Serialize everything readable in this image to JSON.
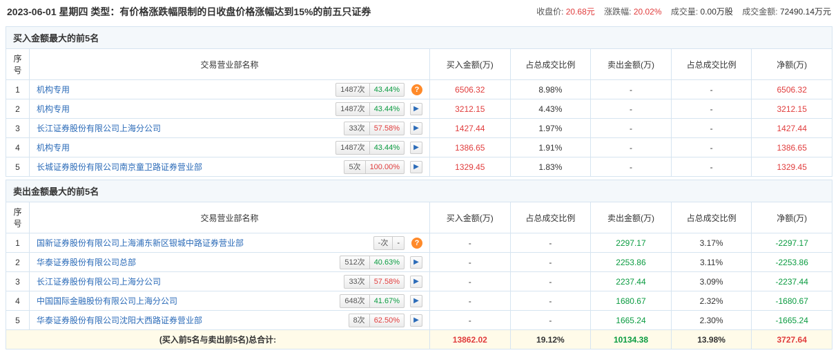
{
  "header": {
    "date": "2023-06-01",
    "weekday": "星期四",
    "type_label": "类型：",
    "type_value": "有价格涨跌幅限制的日收盘价格涨幅达到15%的前五只证券",
    "close_label": "收盘价:",
    "close_value": "20.68元",
    "change_label": "涨跌幅:",
    "change_value": "20.02%",
    "volume_label": "成交量:",
    "volume_value": "0.00万股",
    "amount_label": "成交金额:",
    "amount_value": "72490.14万元"
  },
  "columns": {
    "rank": "序号",
    "name": "交易营业部名称",
    "buy_amount": "买入金额(万)",
    "buy_pct": "占总成交比例",
    "sell_amount": "卖出金额(万)",
    "sell_pct": "占总成交比例",
    "net": "净额(万)"
  },
  "buy": {
    "title": "买入金额最大的前5名",
    "rows": [
      {
        "rank": "1",
        "name": "机构专用",
        "badge_times": "1487次",
        "badge_pct": "43.44%",
        "pct_color": "green",
        "icon": "q",
        "buy": "6506.32",
        "buy_pct": "8.98%",
        "sell": "-",
        "sell_pct": "-",
        "net": "6506.32",
        "net_color": "red"
      },
      {
        "rank": "2",
        "name": "机构专用",
        "badge_times": "1487次",
        "badge_pct": "43.44%",
        "pct_color": "green",
        "icon": "arrow",
        "buy": "3212.15",
        "buy_pct": "4.43%",
        "sell": "-",
        "sell_pct": "-",
        "net": "3212.15",
        "net_color": "red"
      },
      {
        "rank": "3",
        "name": "长江证券股份有限公司上海分公司",
        "badge_times": "33次",
        "badge_pct": "57.58%",
        "pct_color": "red",
        "icon": "arrow",
        "buy": "1427.44",
        "buy_pct": "1.97%",
        "sell": "-",
        "sell_pct": "-",
        "net": "1427.44",
        "net_color": "red"
      },
      {
        "rank": "4",
        "name": "机构专用",
        "badge_times": "1487次",
        "badge_pct": "43.44%",
        "pct_color": "green",
        "icon": "arrow",
        "buy": "1386.65",
        "buy_pct": "1.91%",
        "sell": "-",
        "sell_pct": "-",
        "net": "1386.65",
        "net_color": "red"
      },
      {
        "rank": "5",
        "name": "长城证券股份有限公司南京童卫路证券营业部",
        "badge_times": "5次",
        "badge_pct": "100.00%",
        "pct_color": "red",
        "icon": "arrow",
        "buy": "1329.45",
        "buy_pct": "1.83%",
        "sell": "-",
        "sell_pct": "-",
        "net": "1329.45",
        "net_color": "red"
      }
    ]
  },
  "sell": {
    "title": "卖出金额最大的前5名",
    "rows": [
      {
        "rank": "1",
        "name": "国新证券股份有限公司上海浦东新区银城中路证券营业部",
        "badge_times": "-次",
        "badge_pct": "-",
        "pct_color": "",
        "icon": "q",
        "buy": "-",
        "buy_pct": "-",
        "sell": "2297.17",
        "sell_pct": "3.17%",
        "net": "-2297.17",
        "net_color": "green"
      },
      {
        "rank": "2",
        "name": "华泰证券股份有限公司总部",
        "badge_times": "512次",
        "badge_pct": "40.63%",
        "pct_color": "green",
        "icon": "arrow",
        "buy": "-",
        "buy_pct": "-",
        "sell": "2253.86",
        "sell_pct": "3.11%",
        "net": "-2253.86",
        "net_color": "green"
      },
      {
        "rank": "3",
        "name": "长江证券股份有限公司上海分公司",
        "badge_times": "33次",
        "badge_pct": "57.58%",
        "pct_color": "red",
        "icon": "arrow",
        "buy": "-",
        "buy_pct": "-",
        "sell": "2237.44",
        "sell_pct": "3.09%",
        "net": "-2237.44",
        "net_color": "green"
      },
      {
        "rank": "4",
        "name": "中国国际金融股份有限公司上海分公司",
        "badge_times": "648次",
        "badge_pct": "41.67%",
        "pct_color": "green",
        "icon": "arrow",
        "buy": "-",
        "buy_pct": "-",
        "sell": "1680.67",
        "sell_pct": "2.32%",
        "net": "-1680.67",
        "net_color": "green"
      },
      {
        "rank": "5",
        "name": "华泰证券股份有限公司沈阳大西路证券营业部",
        "badge_times": "8次",
        "badge_pct": "62.50%",
        "pct_color": "red",
        "icon": "arrow",
        "buy": "-",
        "buy_pct": "-",
        "sell": "1665.24",
        "sell_pct": "2.30%",
        "net": "-1665.24",
        "net_color": "green"
      }
    ]
  },
  "total": {
    "label": "(买入前5名与卖出前5名)总合计:",
    "buy": "13862.02",
    "buy_pct": "19.12%",
    "sell": "10134.38",
    "sell_pct": "13.98%",
    "net": "3727.64"
  }
}
